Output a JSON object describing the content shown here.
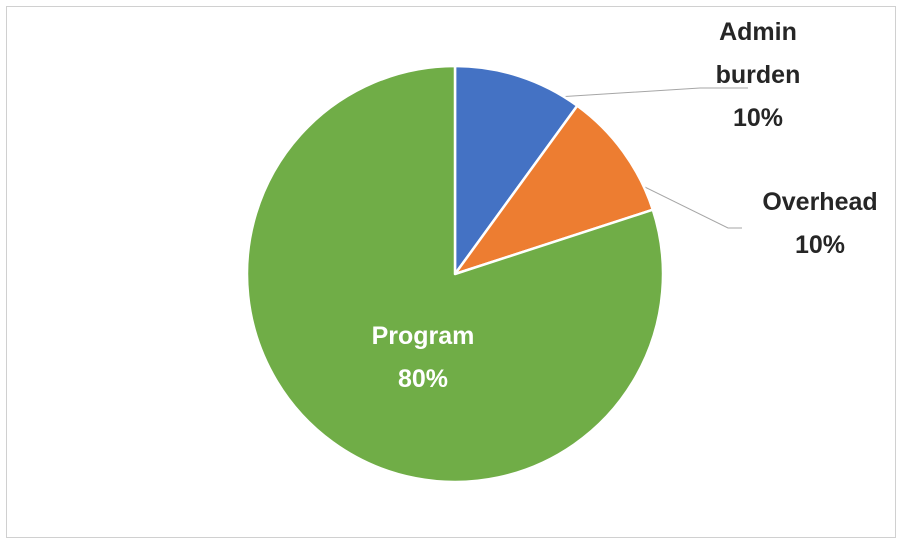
{
  "chart_data": {
    "type": "pie",
    "categories": [
      "Admin burden",
      "Overhead",
      "Program"
    ],
    "values": [
      10,
      10,
      80
    ],
    "value_labels": [
      "10%",
      "10%",
      "80%"
    ],
    "label_lines": [
      [
        "Admin",
        "burden"
      ],
      [
        "Overhead"
      ],
      [
        "Program"
      ]
    ],
    "colors": [
      "#4472C4",
      "#ED7D31",
      "#70AD47"
    ],
    "start_angle_deg": 0,
    "direction": "clockwise",
    "legend": "none",
    "title": ""
  }
}
